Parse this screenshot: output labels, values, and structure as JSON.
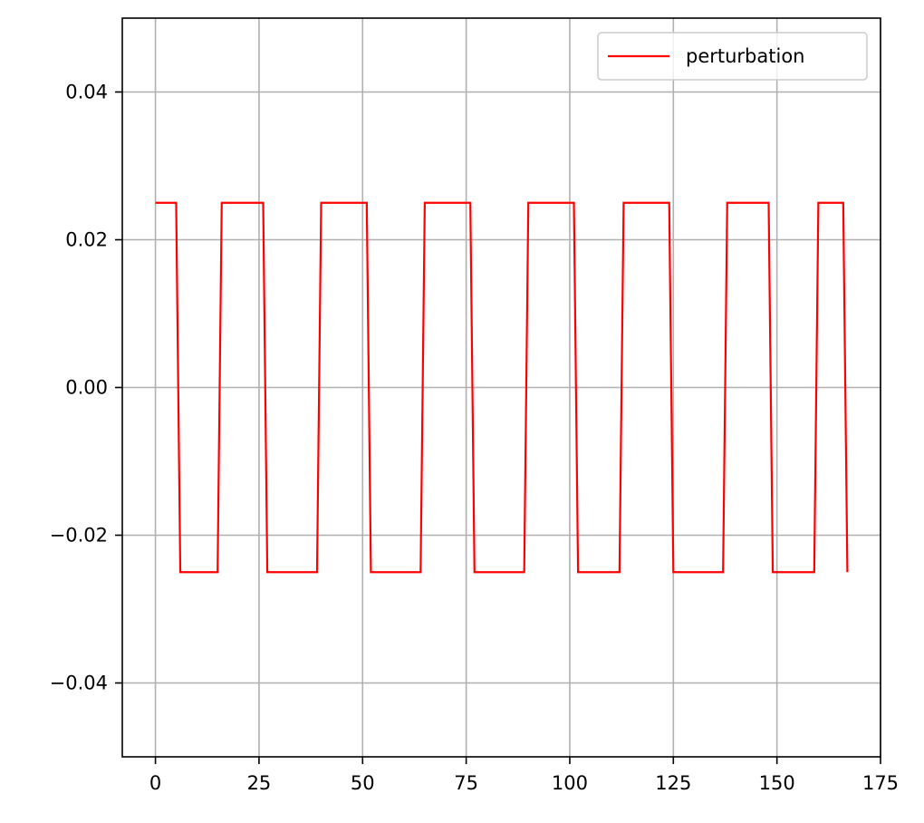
{
  "chart_data": {
    "type": "line",
    "title": "",
    "xlabel": "",
    "ylabel": "",
    "xlim": [
      -8,
      175
    ],
    "ylim": [
      -0.05,
      0.05
    ],
    "xticks": [
      0,
      25,
      50,
      75,
      100,
      125,
      150,
      175
    ],
    "xtick_labels": [
      "0",
      "25",
      "50",
      "75",
      "100",
      "125",
      "150",
      "175"
    ],
    "yticks": [
      -0.04,
      -0.02,
      0.0,
      0.02,
      0.04
    ],
    "ytick_labels": [
      "−0.04",
      "−0.02",
      "0.00",
      "0.02",
      "0.04"
    ],
    "grid": true,
    "legend_position": "top-right",
    "series": [
      {
        "name": "perturbation",
        "color": "#ff0000",
        "x": [
          0,
          5,
          6,
          15,
          16,
          26,
          27,
          39,
          40,
          51,
          52,
          64,
          65,
          76,
          77,
          89,
          90,
          101,
          102,
          112,
          113,
          124,
          125,
          137,
          138,
          148,
          149,
          159,
          160,
          166,
          167
        ],
        "y": [
          0.025,
          0.025,
          -0.025,
          -0.025,
          0.025,
          0.025,
          -0.025,
          -0.025,
          0.025,
          0.025,
          -0.025,
          -0.025,
          0.025,
          0.025,
          -0.025,
          -0.025,
          0.025,
          0.025,
          -0.025,
          -0.025,
          0.025,
          0.025,
          -0.025,
          -0.025,
          0.025,
          0.025,
          -0.025,
          -0.025,
          0.025,
          0.025,
          -0.025
        ]
      }
    ]
  }
}
